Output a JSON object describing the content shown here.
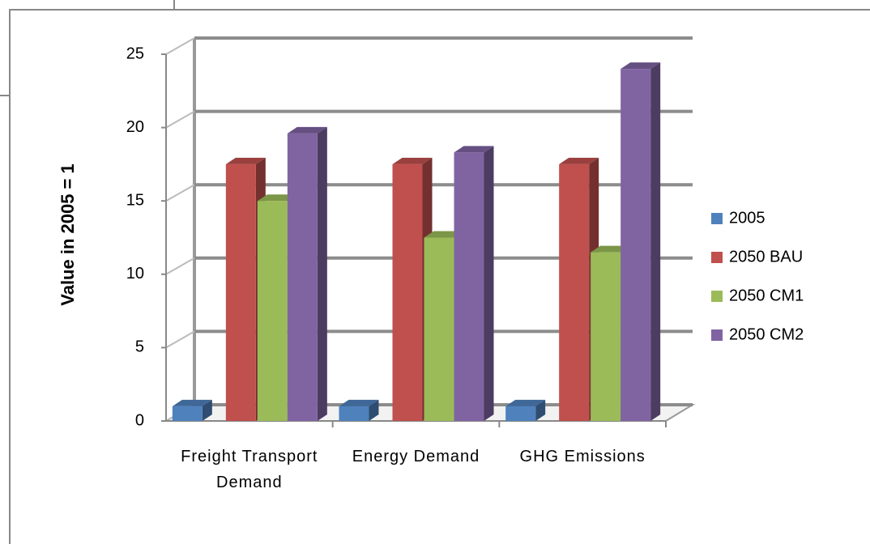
{
  "chart_data": {
    "type": "bar3d",
    "y_label": "Value in 2005 = 1",
    "categories": [
      "Freight Transport Demand",
      "Energy Demand",
      "GHG Emissions"
    ],
    "series": [
      {
        "name": "2005",
        "color": "#4f81bd",
        "values": [
          1,
          1,
          1
        ]
      },
      {
        "name": "2050 BAU",
        "color": "#c0504d",
        "values": [
          17.5,
          17.5,
          17.5
        ]
      },
      {
        "name": "2050 CM1",
        "color": "#9bbb59",
        "values": [
          15,
          12.5,
          11.5
        ]
      },
      {
        "name": "2050 CM2",
        "color": "#8064a2",
        "values": [
          19.6,
          18.3,
          24
        ]
      }
    ],
    "ylim": [
      0,
      25
    ],
    "yticks": [
      0,
      5,
      10,
      15,
      20,
      25
    ],
    "grid": true,
    "legend": "right"
  }
}
